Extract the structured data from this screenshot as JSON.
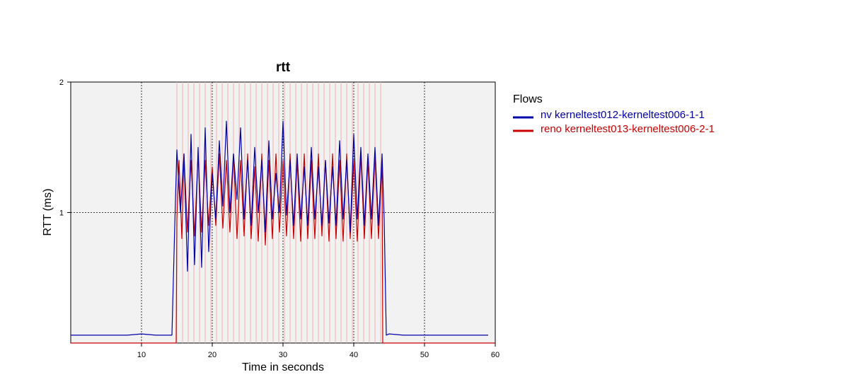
{
  "chart_data": {
    "type": "line",
    "title": "rtt",
    "xlabel": "Time in seconds",
    "ylabel": "RTT (ms)",
    "xlim": [
      0,
      60
    ],
    "ylim": [
      0,
      2
    ],
    "x_ticks": [
      10,
      20,
      30,
      40,
      50,
      60
    ],
    "y_ticks": [
      1,
      2
    ],
    "grid": true,
    "legend": {
      "title": "Flows",
      "placement": "right"
    },
    "series": [
      {
        "name": "nv kerneltest012-kerneltest006-1-1",
        "color": "#0000a8",
        "x": [
          0,
          2,
          4,
          6,
          8,
          10,
          12,
          14.3,
          14.7,
          15.0,
          15.5,
          16.0,
          16.5,
          17.0,
          17.5,
          18.0,
          18.5,
          19.0,
          19.5,
          20.0,
          20.5,
          21.0,
          21.5,
          22.0,
          22.5,
          23.0,
          23.5,
          24.0,
          24.5,
          25.0,
          25.5,
          26.0,
          26.5,
          27.0,
          27.5,
          28.0,
          28.5,
          29.0,
          29.5,
          30.0,
          30.5,
          31.0,
          31.5,
          32.0,
          32.5,
          33.0,
          33.5,
          34.0,
          34.5,
          35.0,
          35.5,
          36.0,
          36.5,
          37.0,
          37.5,
          38.0,
          38.5,
          39.0,
          39.5,
          40.0,
          40.5,
          41.0,
          41.5,
          42.0,
          42.5,
          43.0,
          43.5,
          44.0,
          44.3,
          44.6,
          45.0,
          47,
          50,
          53,
          56,
          59
        ],
        "values": [
          0.06,
          0.06,
          0.06,
          0.06,
          0.06,
          0.07,
          0.06,
          0.06,
          0.9,
          1.48,
          1.0,
          1.45,
          0.55,
          1.6,
          0.6,
          1.5,
          0.58,
          1.65,
          0.7,
          1.3,
          0.95,
          1.55,
          1.05,
          1.7,
          1.0,
          1.45,
          1.1,
          1.65,
          0.95,
          1.4,
          0.9,
          1.5,
          1.0,
          1.4,
          0.85,
          1.55,
          0.95,
          1.3,
          1.0,
          1.7,
          0.98,
          1.4,
          0.9,
          1.45,
          0.95,
          1.35,
          0.9,
          1.5,
          0.95,
          1.35,
          0.9,
          1.4,
          0.92,
          1.35,
          0.9,
          1.55,
          0.95,
          1.4,
          0.85,
          1.6,
          0.95,
          1.5,
          0.9,
          1.45,
          0.95,
          1.5,
          0.9,
          1.45,
          0.95,
          0.06,
          0.07,
          0.06,
          0.06,
          0.06,
          0.06,
          0.06
        ]
      },
      {
        "name": "reno kerneltest013-kerneltest006-2-1",
        "color": "#c80000",
        "x": [
          0,
          14.9,
          15.0,
          15.3,
          15.7,
          16.0,
          16.5,
          17.0,
          17.5,
          18.0,
          18.5,
          19.0,
          19.5,
          20.0,
          20.5,
          21.0,
          21.5,
          22.0,
          22.5,
          23.0,
          23.5,
          24.0,
          24.5,
          25.0,
          25.5,
          26.0,
          26.5,
          27.0,
          27.5,
          28.0,
          28.5,
          29.0,
          29.5,
          30.0,
          30.5,
          31.0,
          31.5,
          32.0,
          32.5,
          33.0,
          33.5,
          34.0,
          34.5,
          35.0,
          35.5,
          36.0,
          36.5,
          37.0,
          37.5,
          38.0,
          38.5,
          39.0,
          39.5,
          40.0,
          40.5,
          41.0,
          41.5,
          42.0,
          42.5,
          43.0,
          43.5,
          44.0,
          44.1,
          60
        ],
        "values": [
          0.0,
          0.0,
          0.95,
          1.4,
          0.8,
          1.45,
          0.85,
          1.4,
          0.82,
          1.45,
          0.85,
          1.4,
          0.9,
          1.35,
          0.9,
          1.45,
          0.88,
          1.4,
          0.85,
          1.45,
          0.8,
          1.4,
          0.82,
          1.45,
          0.8,
          1.35,
          0.78,
          1.45,
          0.75,
          1.4,
          0.8,
          1.45,
          0.85,
          1.4,
          0.82,
          1.45,
          0.8,
          1.4,
          0.78,
          1.45,
          0.8,
          1.4,
          0.8,
          1.45,
          0.82,
          1.4,
          0.78,
          1.45,
          0.8,
          1.4,
          0.78,
          1.45,
          0.8,
          1.4,
          0.78,
          1.45,
          0.8,
          1.4,
          0.8,
          1.45,
          0.8,
          1.4,
          0.0,
          0.0
        ]
      }
    ],
    "highlight_x": [
      15.0,
      15.8,
      16.6,
      17.4,
      18.2,
      19.0,
      19.8,
      20.6,
      21.4,
      22.2,
      23.0,
      23.8,
      24.6,
      25.4,
      26.2,
      27.0,
      27.8,
      28.6,
      29.4,
      30.2,
      31.0,
      31.8,
      32.6,
      33.4,
      34.2,
      35.0,
      35.8,
      36.6,
      37.4,
      38.2,
      39.0,
      39.8,
      40.6,
      41.4,
      42.2,
      43.0,
      43.8
    ]
  }
}
